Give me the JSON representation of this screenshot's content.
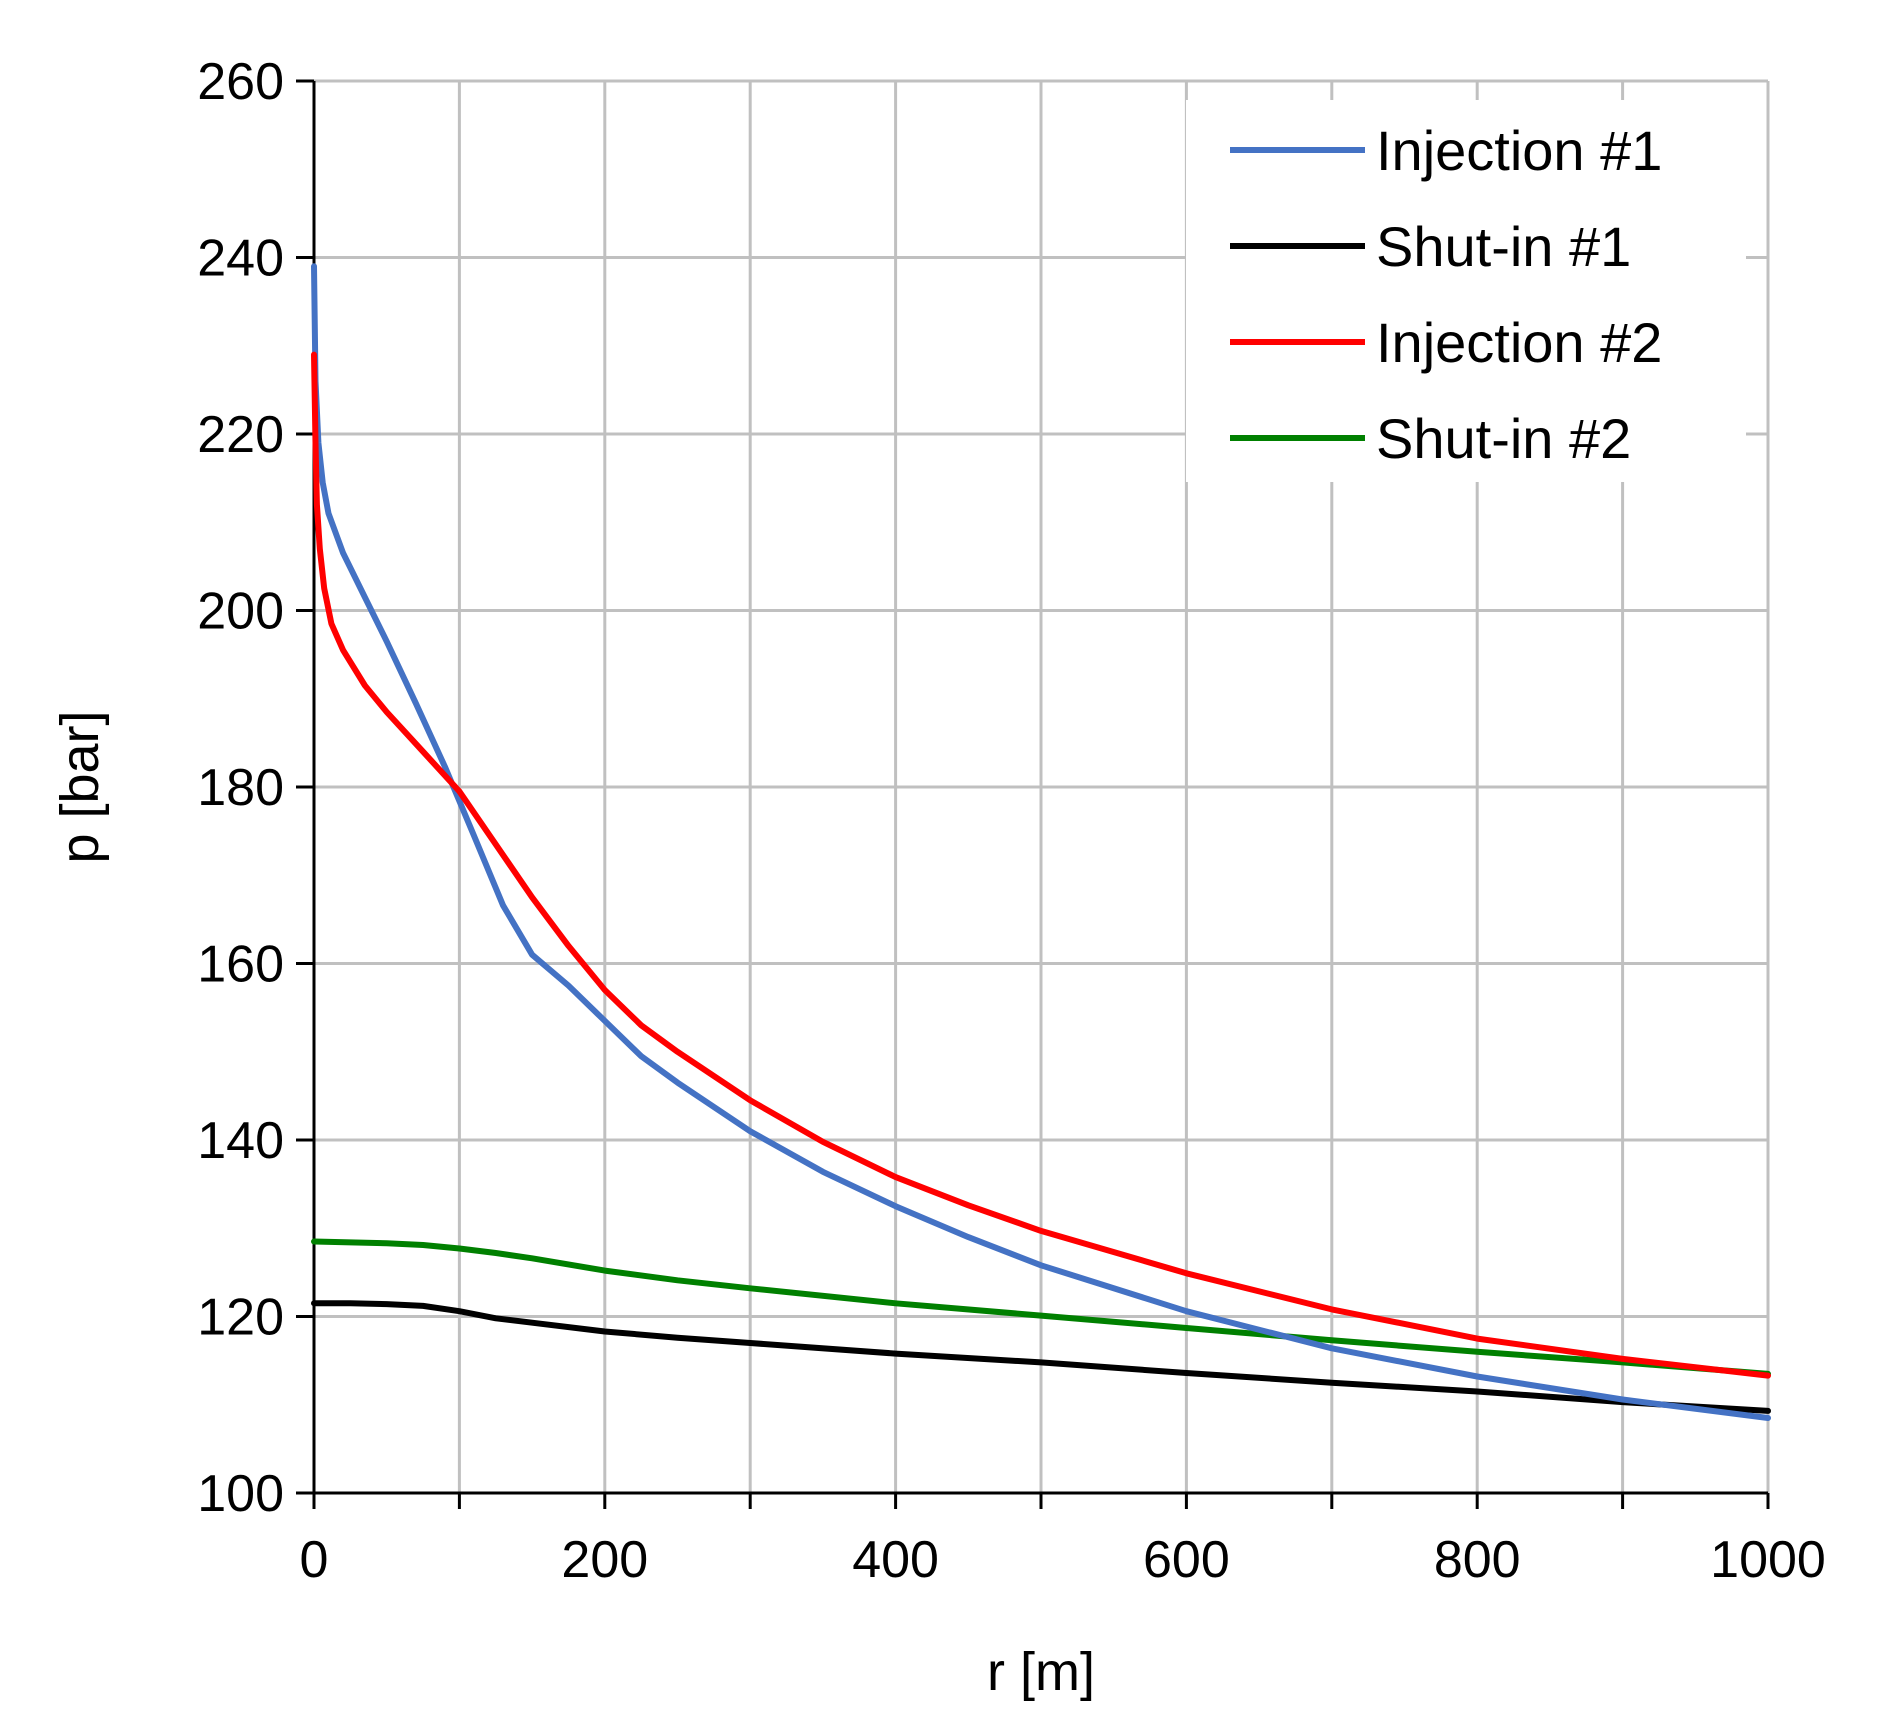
{
  "chart_data": {
    "type": "line",
    "title": "",
    "xlabel": "r [m]",
    "ylabel": "p [bar]",
    "xlim": [
      0,
      1000
    ],
    "ylim": [
      100,
      260
    ],
    "xticks": [
      0,
      200,
      400,
      600,
      800,
      1000
    ],
    "yticks": [
      100,
      120,
      140,
      160,
      180,
      200,
      220,
      240,
      260
    ],
    "x_minor_step": 100,
    "grid": true,
    "legend_position": "top-right",
    "series": [
      {
        "name": "Injection #1",
        "color": "#4472C4",
        "x": [
          0,
          1,
          3,
          6,
          10,
          20,
          35,
          50,
          70,
          90,
          110,
          130,
          150,
          175,
          200,
          225,
          250,
          300,
          350,
          400,
          450,
          500,
          600,
          700,
          800,
          900,
          1000
        ],
        "y": [
          239,
          226,
          219,
          214.5,
          211,
          206.5,
          201.5,
          196.5,
          189.5,
          182.3,
          174.5,
          166.6,
          161,
          157.5,
          153.5,
          149.5,
          146.5,
          141,
          136.4,
          132.5,
          129,
          125.8,
          120.6,
          116.4,
          113.2,
          110.6,
          108.5
        ]
      },
      {
        "name": "Shut-in #1",
        "color": "#000000",
        "x": [
          0,
          25,
          50,
          75,
          100,
          125,
          150,
          200,
          250,
          300,
          400,
          500,
          600,
          700,
          800,
          900,
          1000
        ],
        "y": [
          121.5,
          121.5,
          121.4,
          121.2,
          120.6,
          119.8,
          119.3,
          118.3,
          117.6,
          117,
          115.8,
          114.8,
          113.6,
          112.5,
          111.5,
          110.3,
          109.3
        ]
      },
      {
        "name": "Injection #2",
        "color": "#FF0000",
        "x": [
          0,
          1,
          2,
          4,
          7,
          12,
          20,
          35,
          50,
          75,
          100,
          125,
          150,
          175,
          200,
          225,
          250,
          300,
          350,
          400,
          450,
          500,
          600,
          700,
          800,
          900,
          1000
        ],
        "y": [
          229,
          219,
          212,
          207,
          202.5,
          198.5,
          195.5,
          191.5,
          188.5,
          184,
          179.5,
          173.5,
          167.5,
          162,
          157,
          153,
          150,
          144.5,
          139.8,
          135.8,
          132.6,
          129.7,
          124.9,
          120.8,
          117.5,
          115.2,
          113.3
        ]
      },
      {
        "name": "Shut-in #2",
        "color": "#008000",
        "x": [
          0,
          25,
          50,
          75,
          100,
          125,
          150,
          200,
          250,
          300,
          400,
          500,
          600,
          700,
          800,
          900,
          1000
        ],
        "y": [
          128.5,
          128.4,
          128.3,
          128.1,
          127.7,
          127.2,
          126.6,
          125.2,
          124.1,
          123.2,
          121.5,
          120.1,
          118.7,
          117.3,
          116,
          114.8,
          113.5
        ]
      }
    ]
  }
}
